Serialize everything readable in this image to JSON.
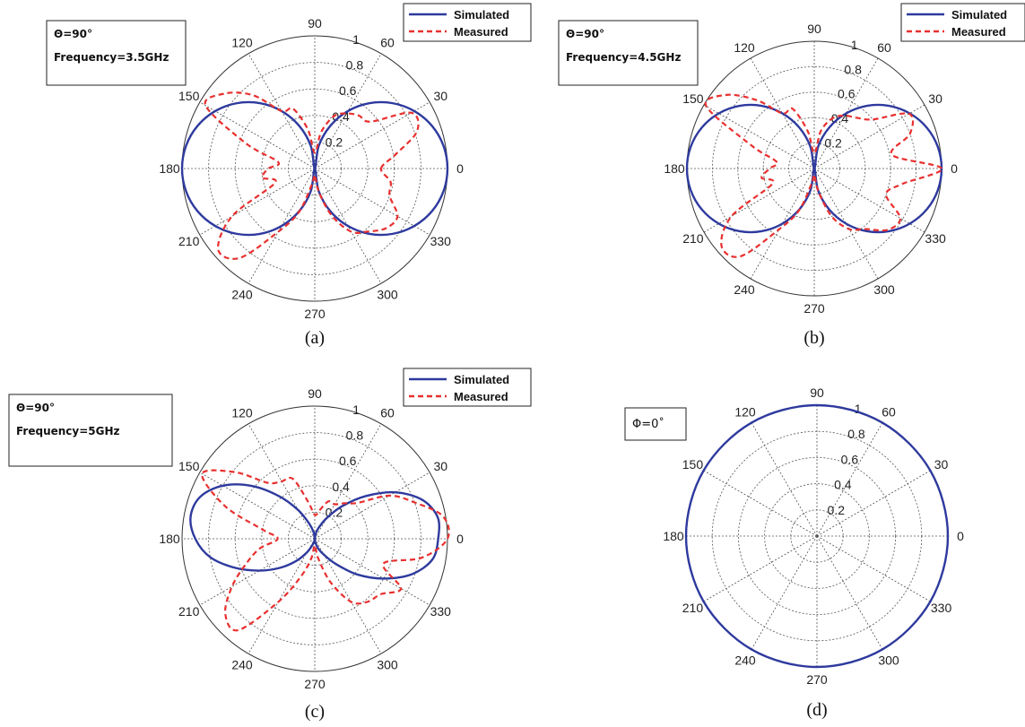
{
  "chart_data": [
    {
      "type": "polar",
      "panel_label": "(a)",
      "annotation": [
        "Θ=90°",
        "Frequency=3.5GHz"
      ],
      "angle_ticks": [
        "0",
        "30",
        "60",
        "90",
        "120",
        "150",
        "180",
        "210",
        "240",
        "270",
        "300",
        "330"
      ],
      "radial_ticks": [
        "0.2",
        "0.4",
        "0.6",
        "0.8",
        "1"
      ],
      "rlim": [
        0,
        1
      ],
      "grid": true,
      "legend": "top-right",
      "series": [
        {
          "name": "Simulated",
          "style": "solid",
          "color": "#2e3a9e",
          "theta_deg": [
            0,
            10,
            20,
            30,
            40,
            50,
            60,
            70,
            80,
            90,
            100,
            110,
            120,
            130,
            140,
            150,
            160,
            170,
            180,
            190,
            200,
            210,
            220,
            230,
            240,
            250,
            260,
            270,
            280,
            290,
            300,
            310,
            320,
            330,
            340,
            350
          ],
          "r": [
            1.0,
            0.985,
            0.94,
            0.866,
            0.766,
            0.643,
            0.5,
            0.342,
            0.174,
            0.0,
            0.174,
            0.342,
            0.5,
            0.643,
            0.766,
            0.866,
            0.94,
            0.985,
            1.0,
            0.985,
            0.94,
            0.866,
            0.766,
            0.643,
            0.5,
            0.342,
            0.174,
            0.0,
            0.174,
            0.342,
            0.5,
            0.643,
            0.766,
            0.866,
            0.94,
            0.985
          ]
        },
        {
          "name": "Measured",
          "style": "dashed",
          "color": "#e8302f",
          "theta_deg": [
            0,
            10,
            20,
            30,
            40,
            50,
            60,
            70,
            80,
            90,
            100,
            110,
            120,
            130,
            140,
            150,
            160,
            170,
            180,
            190,
            200,
            210,
            220,
            230,
            240,
            250,
            260,
            270,
            280,
            290,
            300,
            310,
            320,
            330,
            340,
            350
          ],
          "r": [
            0.5,
            0.62,
            0.82,
            0.84,
            0.55,
            0.52,
            0.48,
            0.42,
            0.28,
            0.12,
            0.3,
            0.48,
            0.5,
            0.72,
            0.88,
            0.95,
            0.55,
            0.28,
            0.35,
            0.4,
            0.32,
            0.72,
            0.95,
            0.88,
            0.55,
            0.35,
            0.12,
            0.05,
            0.18,
            0.38,
            0.55,
            0.62,
            0.7,
            0.72,
            0.6,
            0.58
          ]
        }
      ]
    },
    {
      "type": "polar",
      "panel_label": "(b)",
      "annotation": [
        "Θ=90°",
        "Frequency=4.5GHz"
      ],
      "angle_ticks": [
        "0",
        "30",
        "60",
        "90",
        "120",
        "150",
        "180",
        "210",
        "240",
        "270",
        "300",
        "330"
      ],
      "radial_ticks": [
        "0.2",
        "0.4",
        "0.6",
        "0.8",
        "1"
      ],
      "rlim": [
        0,
        1
      ],
      "grid": true,
      "legend": "top-right",
      "series": [
        {
          "name": "Simulated",
          "style": "solid",
          "color": "#2e3a9e",
          "theta_deg": [
            0,
            10,
            20,
            30,
            40,
            50,
            60,
            70,
            80,
            90,
            100,
            110,
            120,
            130,
            140,
            150,
            160,
            170,
            180,
            190,
            200,
            210,
            220,
            230,
            240,
            250,
            260,
            270,
            280,
            290,
            300,
            310,
            320,
            330,
            340,
            350
          ],
          "r": [
            1.0,
            0.985,
            0.94,
            0.866,
            0.766,
            0.643,
            0.5,
            0.342,
            0.174,
            0.0,
            0.174,
            0.342,
            0.5,
            0.643,
            0.766,
            0.866,
            0.94,
            0.985,
            1.0,
            0.985,
            0.94,
            0.866,
            0.766,
            0.643,
            0.5,
            0.342,
            0.174,
            0.0,
            0.174,
            0.342,
            0.5,
            0.643,
            0.766,
            0.866,
            0.94,
            0.985
          ]
        },
        {
          "name": "Measured",
          "style": "dashed",
          "color": "#e8302f",
          "theta_deg": [
            0,
            10,
            20,
            30,
            40,
            50,
            60,
            70,
            80,
            90,
            100,
            110,
            120,
            130,
            140,
            150,
            160,
            170,
            180,
            190,
            200,
            210,
            220,
            230,
            240,
            250,
            260,
            270,
            280,
            290,
            300,
            310,
            320,
            330,
            340,
            350
          ],
          "r": [
            1.0,
            0.62,
            0.8,
            0.86,
            0.6,
            0.52,
            0.48,
            0.42,
            0.3,
            0.12,
            0.3,
            0.5,
            0.5,
            0.7,
            0.9,
            0.98,
            0.52,
            0.3,
            0.35,
            0.42,
            0.35,
            0.75,
            0.95,
            0.9,
            0.55,
            0.35,
            0.12,
            0.05,
            0.18,
            0.4,
            0.55,
            0.62,
            0.75,
            0.78,
            0.6,
            0.7
          ]
        }
      ]
    },
    {
      "type": "polar",
      "panel_label": "(c)",
      "annotation": [
        "Θ=90°",
        "Frequency=5GHz"
      ],
      "angle_ticks": [
        "0",
        "30",
        "60",
        "90",
        "120",
        "150",
        "180",
        "210",
        "240",
        "270",
        "300",
        "330"
      ],
      "radial_ticks": [
        "0.2",
        "0.4",
        "0.6",
        "0.8",
        "1"
      ],
      "rlim": [
        0,
        1
      ],
      "grid": true,
      "legend": "top-right",
      "series": [
        {
          "name": "Simulated",
          "style": "solid",
          "color": "#2e3a9e",
          "theta_deg": [
            0,
            10,
            20,
            30,
            40,
            50,
            60,
            70,
            80,
            90,
            100,
            110,
            120,
            130,
            140,
            150,
            160,
            170,
            180,
            190,
            200,
            210,
            220,
            230,
            240,
            250,
            260,
            270,
            280,
            290,
            300,
            310,
            320,
            330,
            340,
            350
          ],
          "r": [
            0.93,
            0.94,
            0.86,
            0.7,
            0.5,
            0.32,
            0.18,
            0.09,
            0.04,
            0.0,
            0.05,
            0.12,
            0.25,
            0.42,
            0.62,
            0.8,
            0.92,
            0.95,
            0.9,
            0.8,
            0.64,
            0.48,
            0.34,
            0.22,
            0.12,
            0.05,
            0.02,
            0.0,
            0.03,
            0.08,
            0.14,
            0.25,
            0.42,
            0.6,
            0.78,
            0.9
          ]
        },
        {
          "name": "Measured",
          "style": "dashed",
          "color": "#e8302f",
          "theta_deg": [
            0,
            10,
            20,
            30,
            40,
            50,
            60,
            70,
            80,
            90,
            100,
            110,
            120,
            130,
            140,
            150,
            160,
            170,
            180,
            190,
            200,
            210,
            220,
            230,
            240,
            250,
            260,
            270,
            280,
            290,
            300,
            310,
            320,
            330,
            340,
            350
          ],
          "r": [
            1.0,
            0.98,
            0.8,
            0.65,
            0.42,
            0.35,
            0.3,
            0.3,
            0.22,
            0.18,
            0.28,
            0.48,
            0.5,
            0.55,
            0.78,
            0.98,
            0.72,
            0.4,
            0.28,
            0.42,
            0.55,
            0.72,
            0.88,
            0.9,
            0.55,
            0.3,
            0.15,
            0.05,
            0.15,
            0.35,
            0.55,
            0.62,
            0.65,
            0.75,
            0.55,
            0.82
          ]
        }
      ]
    },
    {
      "type": "polar",
      "panel_label": "(d)",
      "annotation": [
        "Φ=0˚"
      ],
      "angle_ticks": [
        "0",
        "30",
        "60",
        "90",
        "120",
        "150",
        "180",
        "210",
        "240",
        "270",
        "300",
        "330"
      ],
      "radial_ticks": [
        "0.2",
        "0.4",
        "0.6",
        "0.8",
        "1"
      ],
      "rlim": [
        0,
        1
      ],
      "grid": true,
      "series": [
        {
          "name": "",
          "style": "solid",
          "color": "#2e3a9e",
          "theta_deg": [
            0,
            30,
            60,
            90,
            120,
            150,
            180,
            210,
            240,
            270,
            300,
            330
          ],
          "r": [
            1,
            1,
            1,
            1,
            1,
            1,
            1,
            1,
            1,
            1,
            1,
            1
          ]
        }
      ]
    }
  ]
}
